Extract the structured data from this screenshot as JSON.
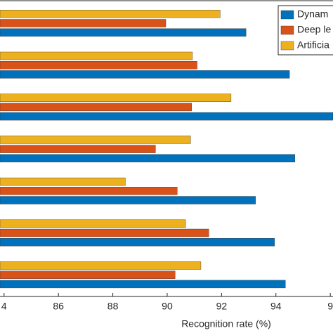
{
  "chart_data": {
    "type": "barh",
    "categories": [
      null,
      null,
      null,
      null,
      null,
      null,
      null
    ],
    "series": [
      {
        "name": "Dynam",
        "color": "#0072bd",
        "values": [
          92.9,
          94.5,
          96.1,
          94.7,
          93.25,
          93.95,
          94.35
        ]
      },
      {
        "name": "Deep le",
        "color": "#d95319",
        "values": [
          89.95,
          91.1,
          90.9,
          89.57,
          90.37,
          91.53,
          90.29
        ]
      },
      {
        "name": "Artificia",
        "color": "#edb120",
        "values": [
          91.95,
          90.93,
          92.35,
          90.86,
          88.46,
          90.68,
          91.24
        ]
      }
    ],
    "xlabel": "Recognition rate (%)",
    "xlim": [
      83.85,
      96.1
    ],
    "xticks": [
      {
        "value": 84,
        "label": "4"
      },
      86,
      88,
      90,
      92,
      94,
      {
        "value": 96,
        "label": "9"
      }
    ],
    "grid": false,
    "legend": "upper right"
  }
}
